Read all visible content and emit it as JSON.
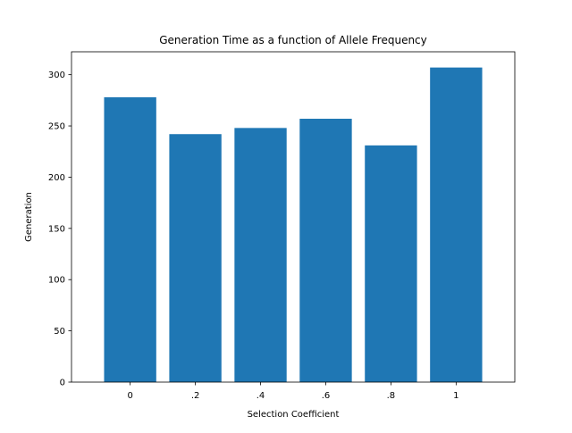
{
  "chart_data": {
    "type": "bar",
    "title": "Generation Time as a function of Allele Frequency",
    "xlabel": "Selection Coefficient",
    "ylabel": "Generation",
    "categories": [
      "0",
      ".2",
      ".4",
      ".6",
      ".8",
      "1"
    ],
    "values": [
      278,
      242,
      248,
      257,
      231,
      307
    ],
    "ylim": [
      0,
      322.35
    ],
    "yticks": [
      0,
      50,
      100,
      150,
      200,
      250,
      300
    ],
    "grid": false,
    "bar_color": "#1f77b4"
  }
}
